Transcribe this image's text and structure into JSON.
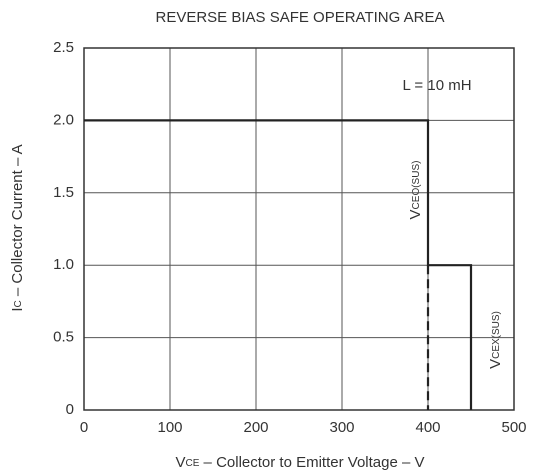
{
  "chart_data": {
    "type": "line",
    "title": "REVERSE BIAS SAFE OPERATING AREA",
    "x_label": {
      "symbol": "V",
      "sub": "CE",
      "text": " – Collector to Emitter Voltage – V"
    },
    "y_label": {
      "symbol": "I",
      "sub": "C",
      "text": " – Collector Current – A"
    },
    "xlim": [
      0,
      500
    ],
    "ylim": [
      0,
      2.5
    ],
    "xticks": [
      0,
      100,
      200,
      300,
      400,
      500
    ],
    "yticks": [
      0,
      0.5,
      {
        "value": 1,
        "label": "1.0"
      },
      1.5,
      {
        "value": 2,
        "label": "2.0"
      },
      2.5
    ],
    "grid": true,
    "series": [
      {
        "color": "#222222",
        "dash": false,
        "x": [
          0,
          400,
          400,
          450,
          450
        ],
        "values": [
          2,
          2,
          1,
          1,
          0
        ]
      },
      {
        "color": "#222222",
        "dash": true,
        "x": [
          400,
          400
        ],
        "values": [
          1,
          0
        ]
      }
    ],
    "annotations": [
      {
        "text": "L = 10 mH"
      },
      {
        "symbol": "V",
        "sub": "CEO(SUS)"
      },
      {
        "symbol": "V",
        "sub": "CEX(SUS)"
      }
    ]
  }
}
